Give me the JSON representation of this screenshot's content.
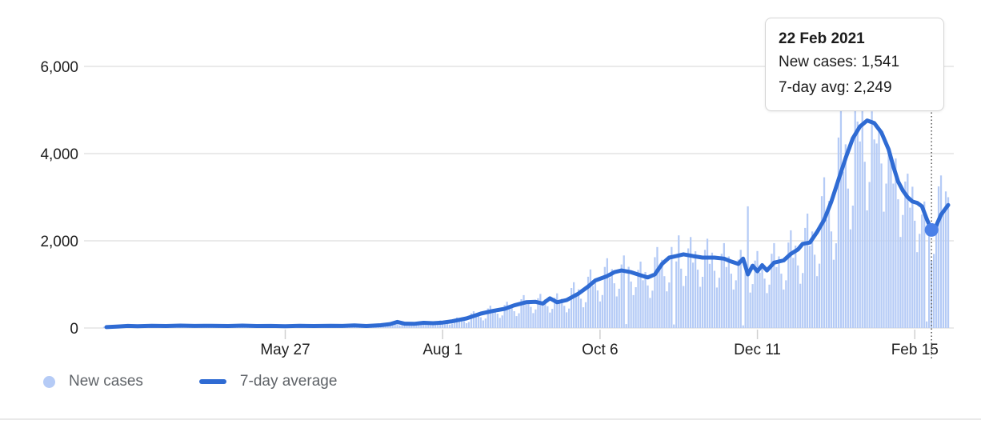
{
  "tooltip": {
    "title": "22 Feb 2021",
    "lines": [
      "New cases: 1,541",
      "7-day avg: 2,249"
    ]
  },
  "legend": {
    "items": [
      {
        "label": "New cases",
        "swatch": "dot",
        "color": "#b5cbf6"
      },
      {
        "label": "7-day average",
        "swatch": "line",
        "color": "#2f6bd3"
      }
    ]
  },
  "colors": {
    "bar": "#b5cbf6",
    "line": "#2f6bd3",
    "dot": "#4a80e8",
    "gridline": "#e4e4e4",
    "tick": "#d0d0d0",
    "crosshair": "#5f5f5f",
    "axis_text": "#1f1f1f",
    "legend_text": "#5f6368"
  },
  "chart_data": {
    "type": "bar",
    "title": "",
    "xlabel": "",
    "ylabel": "",
    "ylim": [
      0,
      6000
    ],
    "grid": true,
    "legend_position": "bottom-left",
    "days_total": 355,
    "y_ticks": [
      {
        "value": 0,
        "label": "0"
      },
      {
        "value": 2000,
        "label": "2,000"
      },
      {
        "value": 4000,
        "label": "4,000"
      },
      {
        "value": 6000,
        "label": "6,000"
      }
    ],
    "x_ticks": [
      {
        "day": 76,
        "label": "May 27"
      },
      {
        "day": 142,
        "label": "Aug 1"
      },
      {
        "day": 208,
        "label": "Oct 6"
      },
      {
        "day": 274,
        "label": "Dec 11"
      },
      {
        "day": 340,
        "label": "Feb 15"
      }
    ],
    "highlight": {
      "day": 347,
      "date": "22 Feb 2021",
      "new_cases": 1541,
      "seven_day_avg": 2249
    },
    "series": [
      {
        "name": "New cases",
        "type": "bar",
        "values": [
          28,
          32,
          23,
          27,
          21,
          15,
          18,
          50,
          58,
          41,
          49,
          37,
          26,
          32,
          48,
          56,
          43,
          47,
          39,
          27,
          34,
          53,
          60,
          43,
          51,
          39,
          27,
          34,
          56,
          64,
          46,
          54,
          41,
          29,
          36,
          57,
          62,
          45,
          52,
          42,
          30,
          35,
          55,
          63,
          47,
          53,
          40,
          28,
          37,
          52,
          60,
          44,
          50,
          38,
          27,
          33,
          56,
          61,
          46,
          55,
          41,
          30,
          36,
          53,
          59,
          43,
          50,
          39,
          26,
          34,
          50,
          57,
          42,
          48,
          37,
          25,
          32,
          52,
          58,
          42,
          49,
          38,
          27,
          33,
          53,
          60,
          44,
          51,
          38,
          28,
          34,
          56,
          63,
          46,
          53,
          41,
          29,
          36,
          58,
          66,
          48,
          56,
          43,
          30,
          37,
          62,
          70,
          51,
          59,
          45,
          32,
          40,
          67,
          77,
          55,
          65,
          49,
          35,
          43,
          112,
          134,
          97,
          151,
          86,
          61,
          76,
          110,
          125,
          90,
          106,
          80,
          57,
          71,
          129,
          147,
          106,
          124,
          94,
          67,
          83,
          151,
          173,
          124,
          146,
          111,
          78,
          97,
          213,
          243,
          175,
          205,
          156,
          110,
          137,
          336,
          384,
          276,
          324,
          246,
          174,
          216,
          448,
          512,
          368,
          432,
          328,
          232,
          288,
          526,
          602,
          432,
          508,
          385,
          273,
          338,
          661,
          755,
          543,
          637,
          484,
          342,
          425,
          683,
          781,
          561,
          659,
          500,
          354,
          439,
          694,
          794,
          570,
          670,
          508,
          360,
          446,
          918,
          1050,
          754,
          886,
          672,
          476,
          590,
          1176,
          1344,
          966,
          1134,
          861,
          609,
          756,
          1400,
          1600,
          1150,
          1350,
          1025,
          725,
          900,
          1456,
          1664,
          90,
          1404,
          1066,
          754,
          936,
          1333,
          1523,
          1095,
          1285,
          976,
          690,
          857,
          1624,
          1856,
          1334,
          1566,
          1189,
          841,
          1044,
          1859,
          80,
          1527,
          2125,
          1361,
          963,
          1195,
          1826,
          2086,
          1500,
          1760,
          1337,
          945,
          1174,
          1792,
          2048,
          1472,
          1728,
          1312,
          928,
          1152,
          1702,
          1946,
          1398,
          1642,
          1246,
          882,
          1094,
          1568,
          1792,
          60,
          1512,
          2790,
          812,
          1008,
          1546,
          1766,
          1270,
          1490,
          1132,
          800,
          994,
          1702,
          1946,
          1399,
          1642,
          1246,
          882,
          1094,
          1960,
          2240,
          1610,
          1890,
          1435,
          1015,
          1260,
          2296,
          2624,
          1886,
          2214,
          1681,
          1189,
          1476,
          3024,
          3456,
          2484,
          2916,
          2214,
          1566,
          1944,
          4368,
          4992,
          3588,
          4212,
          3198,
          2262,
          2808,
          5079,
          4736,
          4278,
          5022,
          3813,
          2697,
          3348,
          4968,
          4324,
          4232,
          4600,
          3772,
          2668,
          3312,
          4032,
          3960,
          3312,
          3888,
          2952,
          2088,
          2592,
          3360,
          3540,
          2760,
          3240,
          2460,
          1740,
          2160,
          2600,
          2900,
          150,
          2300,
          1541,
          1700,
          2400,
          3248,
          3500,
          2668,
          3132,
          3000
        ]
      },
      {
        "name": "7-day average",
        "type": "line",
        "anchors": [
          [
            1,
            20
          ],
          [
            6,
            35
          ],
          [
            10,
            48
          ],
          [
            14,
            42
          ],
          [
            20,
            52
          ],
          [
            26,
            45
          ],
          [
            32,
            55
          ],
          [
            38,
            48
          ],
          [
            45,
            52
          ],
          [
            52,
            45
          ],
          [
            58,
            55
          ],
          [
            64,
            45
          ],
          [
            70,
            48
          ],
          [
            76,
            42
          ],
          [
            82,
            50
          ],
          [
            88,
            45
          ],
          [
            95,
            52
          ],
          [
            100,
            48
          ],
          [
            105,
            60
          ],
          [
            110,
            45
          ],
          [
            116,
            65
          ],
          [
            120,
            90
          ],
          [
            123,
            140
          ],
          [
            126,
            100
          ],
          [
            130,
            95
          ],
          [
            134,
            120
          ],
          [
            138,
            110
          ],
          [
            142,
            125
          ],
          [
            146,
            155
          ],
          [
            152,
            220
          ],
          [
            158,
            330
          ],
          [
            163,
            390
          ],
          [
            168,
            440
          ],
          [
            172,
            520
          ],
          [
            177,
            590
          ],
          [
            181,
            600
          ],
          [
            184,
            560
          ],
          [
            187,
            680
          ],
          [
            190,
            590
          ],
          [
            194,
            640
          ],
          [
            199,
            790
          ],
          [
            203,
            950
          ],
          [
            206,
            1090
          ],
          [
            211,
            1190
          ],
          [
            214,
            1280
          ],
          [
            217,
            1320
          ],
          [
            221,
            1280
          ],
          [
            225,
            1210
          ],
          [
            228,
            1160
          ],
          [
            231,
            1230
          ],
          [
            234,
            1470
          ],
          [
            237,
            1615
          ],
          [
            240,
            1650
          ],
          [
            243,
            1690
          ],
          [
            247,
            1650
          ],
          [
            251,
            1615
          ],
          [
            256,
            1615
          ],
          [
            260,
            1590
          ],
          [
            263,
            1525
          ],
          [
            266,
            1470
          ],
          [
            268,
            1590
          ],
          [
            270,
            1230
          ],
          [
            272,
            1430
          ],
          [
            274,
            1300
          ],
          [
            276,
            1440
          ],
          [
            278,
            1320
          ],
          [
            281,
            1500
          ],
          [
            285,
            1550
          ],
          [
            288,
            1700
          ],
          [
            291,
            1800
          ],
          [
            293,
            1930
          ],
          [
            296,
            1960
          ],
          [
            299,
            2200
          ],
          [
            302,
            2480
          ],
          [
            305,
            2900
          ],
          [
            308,
            3400
          ],
          [
            311,
            3900
          ],
          [
            314,
            4350
          ],
          [
            317,
            4620
          ],
          [
            320,
            4760
          ],
          [
            323,
            4700
          ],
          [
            326,
            4480
          ],
          [
            329,
            4100
          ],
          [
            331,
            3700
          ],
          [
            333,
            3360
          ],
          [
            335,
            3150
          ],
          [
            337,
            3000
          ],
          [
            339,
            2900
          ],
          [
            341,
            2870
          ],
          [
            343,
            2790
          ],
          [
            345,
            2500
          ],
          [
            347,
            2249
          ],
          [
            349,
            2350
          ],
          [
            351,
            2600
          ],
          [
            354,
            2820
          ]
        ]
      }
    ]
  }
}
